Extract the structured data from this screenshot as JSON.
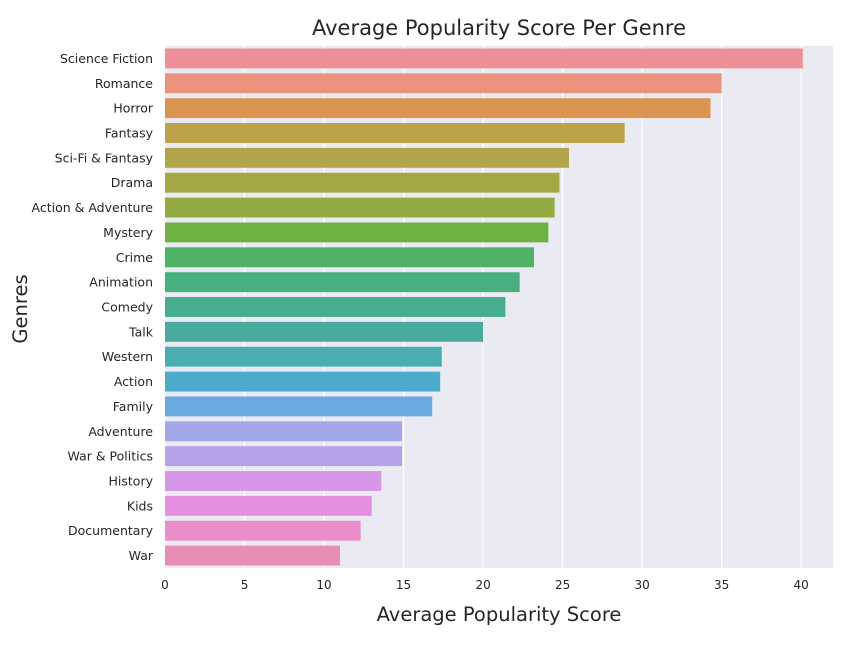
{
  "chart_data": {
    "type": "bar",
    "orientation": "horizontal",
    "title": "Average Popularity Score Per Genre",
    "xlabel": "Average Popularity Score",
    "ylabel": "Genres",
    "xlim": [
      0,
      42
    ],
    "xticks": [
      0,
      5,
      10,
      15,
      20,
      25,
      30,
      35,
      40
    ],
    "grid": true,
    "categories": [
      "Science Fiction",
      "Romance",
      "Horror",
      "Fantasy",
      "Sci-Fi & Fantasy",
      "Drama",
      "Action & Adventure",
      "Mystery",
      "Crime",
      "Animation",
      "Comedy",
      "Talk",
      "Western",
      "Action",
      "Family",
      "Adventure",
      "War & Politics",
      "History",
      "Kids",
      "Documentary",
      "War"
    ],
    "values": [
      40.1,
      35.0,
      34.3,
      28.9,
      25.4,
      24.8,
      24.5,
      24.1,
      23.2,
      22.3,
      21.4,
      20.0,
      17.4,
      17.3,
      16.8,
      14.9,
      14.9,
      13.6,
      13.0,
      12.3,
      11.0
    ],
    "colors": [
      "#ec8f99",
      "#ec937e",
      "#dc9451",
      "#bca34a",
      "#b1a44a",
      "#a3a744",
      "#94ab42",
      "#6eb243",
      "#4fb163",
      "#48af80",
      "#46ad8f",
      "#48ab9e",
      "#49adb2",
      "#4babca",
      "#6aaae3",
      "#a3a8e8",
      "#b5a2e8",
      "#d596e8",
      "#e58fe0",
      "#ea8ec9",
      "#e88fb6"
    ],
    "style": {
      "plot_background": "#eaeaf2",
      "grid_color": "#ffffff"
    }
  }
}
